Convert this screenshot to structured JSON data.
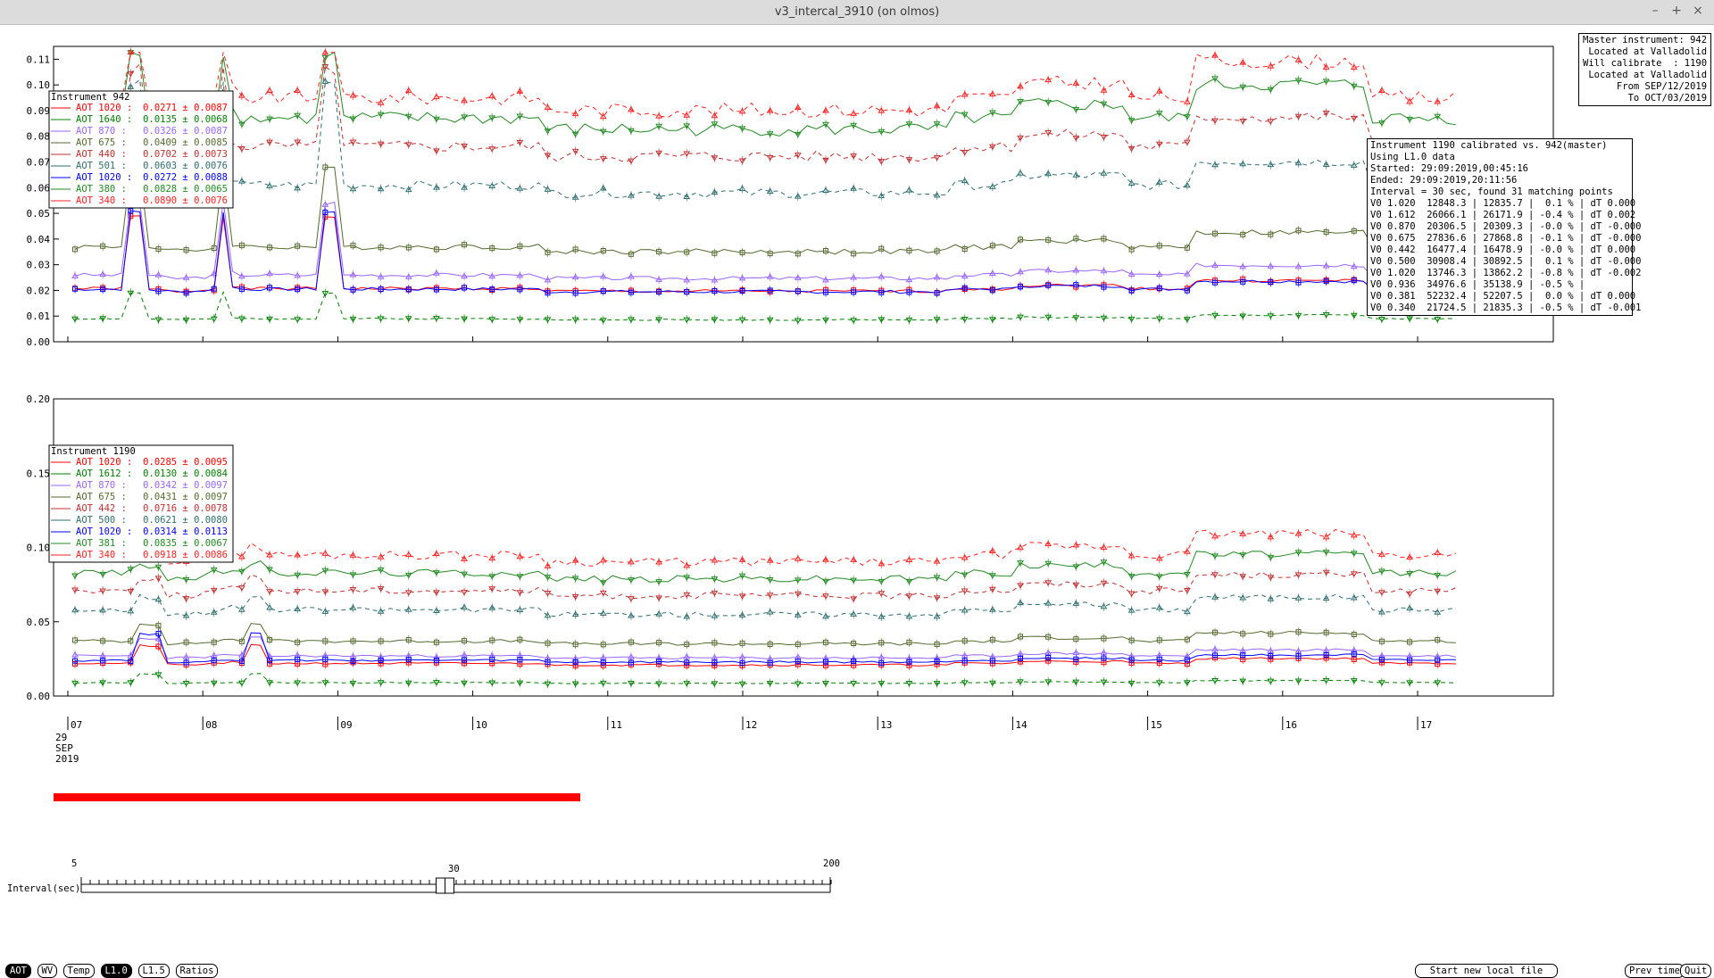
{
  "window": {
    "title": "v3_intercal_3910 (on olmos)",
    "controls": [
      "–",
      "+",
      "×"
    ]
  },
  "master_info": [
    "Master instrument: 942",
    "Located at Valladolid",
    "Will calibrate  : 1190",
    "Located at Valladolid",
    "From SEP/12/2019",
    "To OCT/03/2019"
  ],
  "calib_info": [
    "Instrument 1190 calibrated vs. 942(master)",
    "Using L1.0 data",
    "Started: 29:09:2019,00:45:16",
    "Ended: 29:09:2019,20:11:56",
    "Interval = 30 sec, found 31 matching points",
    "V0 1.020  12848.3 | 12835.7 |  0.1 % | dT 0.000",
    "V0 1.612  26066.1 | 26171.9 | -0.4 % | dT 0.002",
    "V0 0.870  20306.5 | 20309.3 | -0.0 % | dT -0.000",
    "V0 0.675  27836.6 | 27868.8 | -0.1 % | dT -0.000",
    "V0 0.442  16477.4 | 16478.9 | -0.0 % | dT 0.000",
    "V0 0.500  30908.4 | 30892.5 |  0.1 % | dT -0.000",
    "V0 1.020  13746.3 | 13862.2 | -0.8 % | dT -0.002",
    "V0 0.936  34976.6 | 35138.9 | -0.5 % |",
    "V0 0.381  52232.4 | 52207.5 |  0.0 % | dT 0.000",
    "V0 0.340  21724.5 | 21835.3 | -0.5 % | dT -0.001"
  ],
  "chart_data": [
    {
      "type": "line",
      "legend_title": "Instrument 942",
      "ylim": [
        0,
        0.115
      ],
      "y_ticks": [
        "0.00",
        "0.01",
        "0.02",
        "0.03",
        "0.04",
        "0.05",
        "0.06",
        "0.07",
        "0.08",
        "0.09",
        "0.10",
        "0.11"
      ],
      "x_ticks": [
        "07",
        "08",
        "09",
        "10",
        "11",
        "12",
        "13",
        "14",
        "15",
        "16",
        "17"
      ],
      "series": [
        {
          "label": "AOT 1020 :",
          "stat": "0.0271 ± 0.0087",
          "color": "#ff0000",
          "base": 0.0207,
          "spike": 0.028
        },
        {
          "label": "AOT 1640 :",
          "stat": "0.0135 ± 0.0068",
          "color": "#008000",
          "base": 0.009,
          "spike": 0.01
        },
        {
          "label": "AOT 870 :",
          "stat": "0.0326 ± 0.0087",
          "color": "#9966ff",
          "base": 0.026,
          "spike": 0.028
        },
        {
          "label": "AOT 675 :",
          "stat": "0.0409 ± 0.0085",
          "color": "#556b2f",
          "base": 0.037,
          "spike": 0.03
        },
        {
          "label": "AOT 440 :",
          "stat": "0.0702 ± 0.0073",
          "color": "#c03030",
          "base": 0.076,
          "spike": 0.03
        },
        {
          "label": "AOT 501 :",
          "stat": "0.0603 ± 0.0076",
          "color": "#2f6f6f",
          "base": 0.061,
          "spike": 0.04
        },
        {
          "label": "AOT 1020 :",
          "stat": "0.0272 ± 0.0088",
          "color": "#0000ff",
          "base": 0.0205,
          "spike": 0.03
        },
        {
          "label": "AOT 380 :",
          "stat": "0.0828 ± 0.0065",
          "color": "#228b22",
          "base": 0.087,
          "spike": 0.025
        },
        {
          "label": "AOT 340 :",
          "stat": "0.0890 ± 0.0076",
          "color": "#ff2020",
          "base": 0.095,
          "spike": 0.02
        }
      ]
    },
    {
      "type": "line",
      "legend_title": "Instrument 1190",
      "ylim": [
        0,
        0.2
      ],
      "y_ticks": [
        "0.00",
        "0.05",
        "0.10",
        "0.15",
        "0.20"
      ],
      "x_ticks": [
        "07",
        "08",
        "09",
        "10",
        "11",
        "12",
        "13",
        "14",
        "15",
        "16",
        "17"
      ],
      "date_label": [
        "29",
        "SEP",
        "2019"
      ],
      "series": [
        {
          "label": "AOT 1020 :",
          "stat": "0.0285 ± 0.0095",
          "color": "#ff0000",
          "base": 0.022,
          "spike": 0.02
        },
        {
          "label": "AOT 1612 :",
          "stat": "0.0130 ± 0.0084",
          "color": "#008000",
          "base": 0.009,
          "spike": 0.01
        },
        {
          "label": "AOT 870 :",
          "stat": "0.0342 ± 0.0097",
          "color": "#9966ff",
          "base": 0.027,
          "spike": 0.02
        },
        {
          "label": "AOT 675 :",
          "stat": "0.0431 ± 0.0097",
          "color": "#556b2f",
          "base": 0.037,
          "spike": 0.02
        },
        {
          "label": "AOT 442 :",
          "stat": "0.0716 ± 0.0078",
          "color": "#c03030",
          "base": 0.071,
          "spike": 0.015
        },
        {
          "label": "AOT 500 :",
          "stat": "0.0621 ± 0.0080",
          "color": "#2f6f6f",
          "base": 0.058,
          "spike": 0.015
        },
        {
          "label": "AOT 1020 :",
          "stat": "0.0314 ± 0.0113",
          "color": "#0000ff",
          "base": 0.024,
          "spike": 0.03
        },
        {
          "label": "AOT 381 :",
          "stat": "0.0835 ± 0.0067",
          "color": "#228b22",
          "base": 0.083,
          "spike": 0.01
        },
        {
          "label": "AOT 340 :",
          "stat": "0.0918 ± 0.0086",
          "color": "#ff2020",
          "base": 0.095,
          "spike": 0.01
        }
      ]
    }
  ],
  "slider": {
    "label": "Interval(sec)",
    "ticks": [
      "5",
      "30",
      "200"
    ],
    "value": 30
  },
  "progress_fraction": 0.44,
  "buttons_left": [
    {
      "label": "AOT",
      "active": true
    },
    {
      "label": "WV",
      "active": false
    },
    {
      "label": "Temp",
      "active": false
    },
    {
      "label": "L1.0",
      "active": true
    },
    {
      "label": "L1.5",
      "active": false
    },
    {
      "label": "Ratios",
      "active": false
    }
  ],
  "buttons_right": {
    "start_local": "Start new local file",
    "prev_time": "Prev time",
    "quit": "Quit"
  }
}
